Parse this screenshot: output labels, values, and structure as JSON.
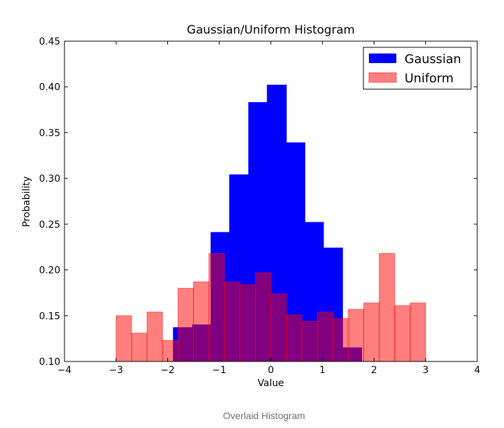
{
  "caption": "Overlaid Histogram",
  "chart_data": {
    "type": "bar",
    "title": "Gaussian/Uniform Histogram",
    "xlabel": "Value",
    "ylabel": "Probability",
    "xlim": [
      -4,
      4
    ],
    "ylim": [
      0.1,
      0.45
    ],
    "xticks": [
      -4,
      -3,
      -2,
      -1,
      0,
      1,
      2,
      3,
      4
    ],
    "xtick_labels": [
      "−4",
      "−3",
      "−2",
      "−1",
      "0",
      "1",
      "2",
      "3",
      "4"
    ],
    "yticks": [
      0.1,
      0.15,
      0.2,
      0.25,
      0.3,
      0.35,
      0.4,
      0.45
    ],
    "ytick_labels": [
      "0.10",
      "0.15",
      "0.20",
      "0.25",
      "0.30",
      "0.35",
      "0.40",
      "0.45"
    ],
    "grid": false,
    "legend_position": "top-right",
    "series": [
      {
        "name": "Gaussian",
        "color": "#0000ff",
        "opacity": 1.0,
        "bin_edges": [
          -1.89,
          -1.52,
          -1.16,
          -0.8,
          -0.43,
          -0.07,
          0.3,
          0.66,
          1.02,
          1.39,
          1.76
        ],
        "values": [
          0.137,
          0.14,
          0.241,
          0.304,
          0.383,
          0.402,
          0.339,
          0.252,
          0.224,
          0.115
        ]
      },
      {
        "name": "Uniform",
        "color": "#ff0000",
        "opacity": 0.5,
        "bin_edges": [
          -3.0,
          -2.7,
          -2.4,
          -2.1,
          -1.8,
          -1.5,
          -1.2,
          -0.9,
          -0.6,
          -0.3,
          0.0,
          0.3,
          0.6,
          0.9,
          1.2,
          1.5,
          1.8,
          2.1,
          2.4,
          2.7,
          3.0
        ],
        "values": [
          0.15,
          0.131,
          0.154,
          0.123,
          0.18,
          0.187,
          0.218,
          0.187,
          0.184,
          0.197,
          0.174,
          0.151,
          0.144,
          0.154,
          0.147,
          0.157,
          0.164,
          0.218,
          0.161,
          0.164
        ]
      }
    ]
  }
}
